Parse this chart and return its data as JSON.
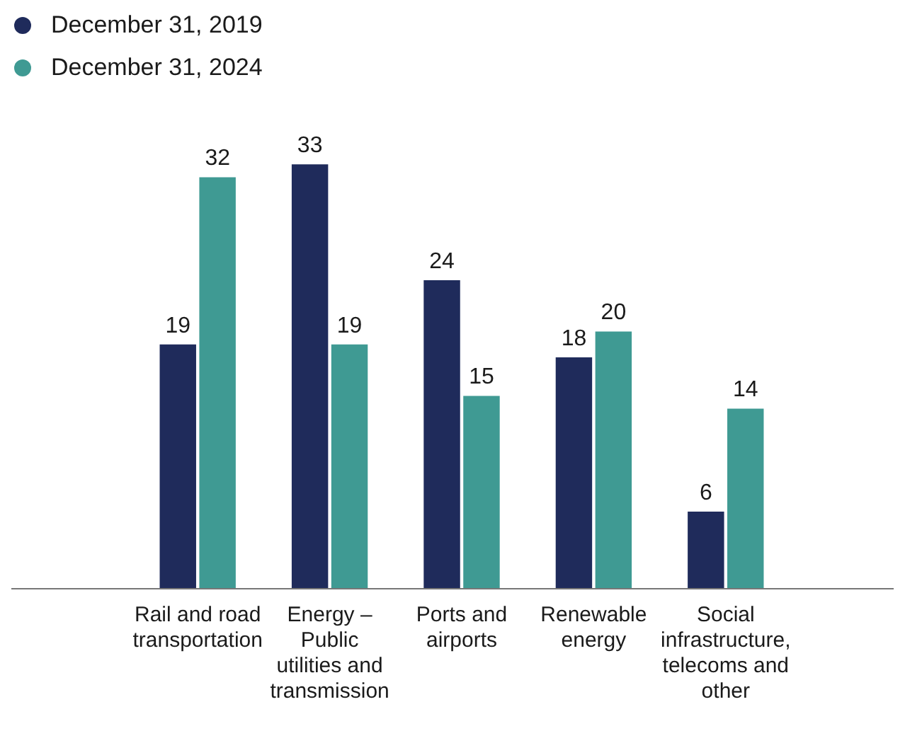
{
  "chart_data": {
    "type": "bar",
    "categories": [
      "Rail and road transportation",
      "Energy – Public utilities and transmission",
      "Ports and airports",
      "Renewable energy",
      "Social infrastructure, telecoms and other"
    ],
    "series": [
      {
        "name": "December 31, 2019",
        "color": "#1f2b5b",
        "values": [
          19,
          33,
          24,
          18,
          6
        ]
      },
      {
        "name": "December 31, 2024",
        "color": "#3f9a93",
        "values": [
          32,
          19,
          15,
          20,
          14
        ]
      }
    ],
    "relative": false,
    "data_labels": true,
    "grid": false,
    "legend": "top left"
  }
}
